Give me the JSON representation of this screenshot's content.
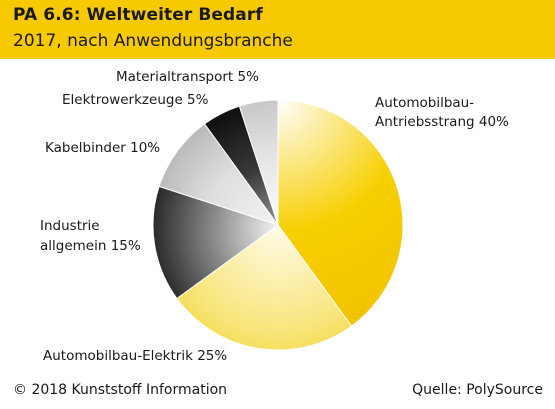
{
  "header": {
    "title": "PA 6.6: Weltweiter Bedarf",
    "subtitle": "2017, nach Anwendungsbranche"
  },
  "chart_data": {
    "type": "pie",
    "slices": [
      {
        "label_lines": [
          "Automobilbau-",
          "Antriebsstrang 40%"
        ],
        "value": 40,
        "color": "#f7c900"
      },
      {
        "label_lines": [
          "Automobilbau-Elektrik 25%"
        ],
        "value": 25,
        "color": "#f2d54a"
      },
      {
        "label_lines": [
          "Industrie",
          "allgemein 15%"
        ],
        "value": 15,
        "color": "#4a4a4a"
      },
      {
        "label_lines": [
          "Kabelbinder 10%"
        ],
        "value": 10,
        "color": "#bdbdbd"
      },
      {
        "label_lines": [
          "Elektrowerkzeuge 5%"
        ],
        "value": 5,
        "color": "#1e1e1e"
      },
      {
        "label_lines": [
          "Materialtransport 5%"
        ],
        "value": 5,
        "color": "#d6d6d6"
      }
    ]
  },
  "footer": {
    "copyright": "© 2018 Kunststoff Information",
    "source": "Quelle: PolySource"
  }
}
